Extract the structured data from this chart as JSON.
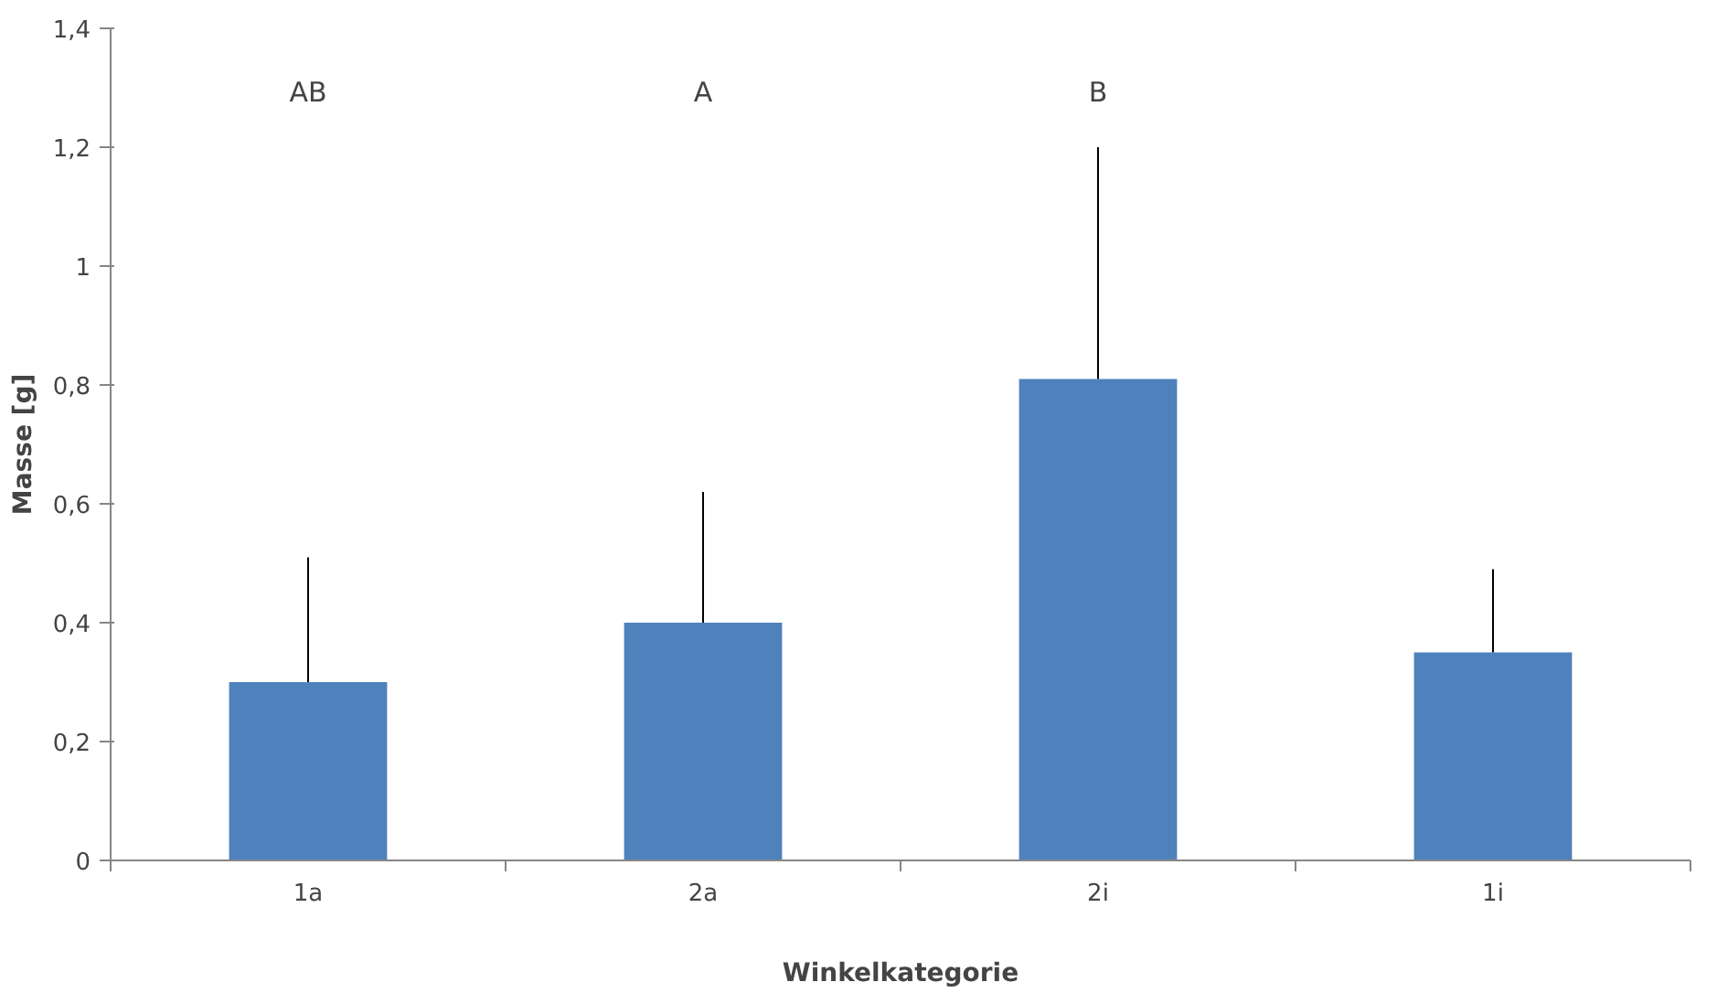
{
  "chart_data": {
    "type": "bar",
    "xlabel": "Winkelkategorie",
    "ylabel": "Masse [g]",
    "categories": [
      "1a",
      "2a",
      "2i",
      "1i"
    ],
    "values": [
      0.3,
      0.4,
      0.81,
      0.35
    ],
    "errors": [
      [
        0.3,
        0.51
      ],
      [
        0.4,
        0.62
      ],
      [
        0.81,
        1.2
      ],
      [
        0.35,
        0.49
      ]
    ],
    "color": "#4f81bd",
    "ylim": [
      0,
      1.4
    ],
    "yticks": [
      0,
      {
        "value": 0.2,
        "label": "0,2"
      },
      {
        "value": 0.4,
        "label": "0,4"
      },
      {
        "value": 0.6,
        "label": "0,6"
      },
      {
        "value": 0.8,
        "label": "0,8"
      },
      1,
      {
        "value": 1.2,
        "label": "1,2"
      },
      {
        "value": 1.4,
        "label": "1,4"
      }
    ],
    "annotations": [
      "AB",
      "A",
      "B"
    ],
    "grid": false
  }
}
